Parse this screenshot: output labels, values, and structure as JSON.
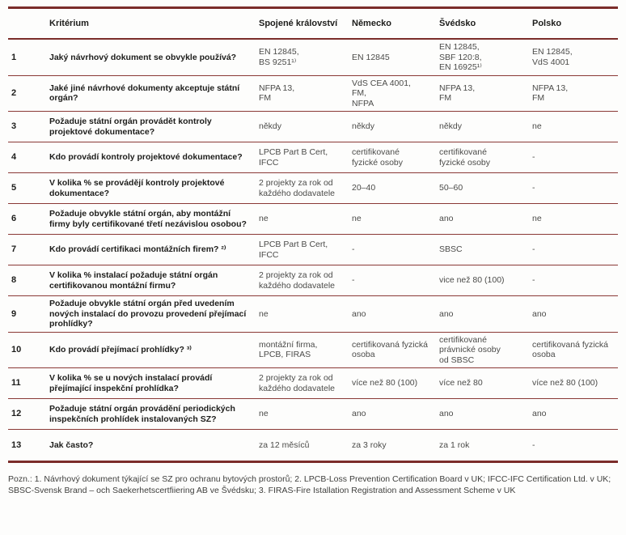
{
  "table": {
    "columns": {
      "criterium": "Kritérium",
      "uk": "Spojené království",
      "germany": "Německo",
      "sweden": "Švédsko",
      "poland": "Polsko"
    },
    "rows": [
      {
        "num": "1",
        "question": "Jaký návrhový dokument se obvykle používá?",
        "uk": "EN 12845,\nBS 9251¹⁾",
        "germany": "EN 12845",
        "sweden": "EN 12845,\nSBF 120:8,\nEN 16925¹⁾",
        "poland": "EN 12845,\nVdS 4001"
      },
      {
        "num": "2",
        "question": "Jaké jiné návrhové dokumenty akceptuje státní orgán?",
        "uk": "NFPA 13,\nFM",
        "germany": "VdS CEA 4001,\nFM,\nNFPA",
        "sweden": "NFPA 13,\nFM",
        "poland": "NFPA 13,\nFM"
      },
      {
        "num": "3",
        "question": "Požaduje státní orgán provádět kontroly projektové dokumentace?",
        "uk": "někdy",
        "germany": "někdy",
        "sweden": "někdy",
        "poland": "ne"
      },
      {
        "num": "4",
        "question": "Kdo provádí kontroly projektové dokumentace?",
        "uk": "LPCB Part B Cert,\nIFCC",
        "germany": "certifikované\nfyzické osoby",
        "sweden": "certifikované\nfyzické osoby",
        "poland": "-"
      },
      {
        "num": "5",
        "question": "V kolika % se provádějí kontroly projektové dokumentace?",
        "uk": "2 projekty za rok od\nkaždého dodavatele",
        "germany": "20–40",
        "sweden": "50–60",
        "poland": "-"
      },
      {
        "num": "6",
        "question": "Požaduje obvykle státní orgán, aby montážní firmy byly  certifikované třetí nezávislou osobou?",
        "uk": "ne",
        "germany": "ne",
        "sweden": "ano",
        "poland": "ne"
      },
      {
        "num": "7",
        "question": "Kdo provádí certifikaci montážních firem? ²⁾",
        "uk": "LPCB Part B Cert,\nIFCC",
        "germany": "-",
        "sweden": "SBSC",
        "poland": "-"
      },
      {
        "num": "8",
        "question": "V kolika % instalací požaduje státní orgán certifikovanou montážní firmu?",
        "uk": "2 projekty za rok od\nkaždého dodavatele",
        "germany": "-",
        "sweden": "vice než 80 (100)",
        "poland": "-"
      },
      {
        "num": "9",
        "question": "Požaduje obvykle státní orgán před uvedením nových instalací do provozu provedení přejímací  prohlídky?",
        "uk": "ne",
        "germany": "ano",
        "sweden": "ano",
        "poland": "ano"
      },
      {
        "num": "10",
        "question": "Kdo provádí přejímací prohlídky? ³⁾",
        "uk": "montážní firma,\nLPCB, FIRAS",
        "germany": "certifikovaná fyzická\nosoba",
        "sweden": "certifikované\nprávnické osoby\nod SBSC",
        "poland": "certifikovaná fyzická\nosoba"
      },
      {
        "num": "11",
        "question": "V kolika % se u nových instalací provádí přejímající inspekční prohlídka?",
        "uk": "2 projekty za rok od\nkaždého dodavatele",
        "germany": "více než 80 (100)",
        "sweden": "více než 80",
        "poland": "více než 80 (100)"
      },
      {
        "num": "12",
        "question": "Požaduje státní orgán provádění periodických inspekčních prohlídek instalovaných SZ?",
        "uk": "ne",
        "germany": "ano",
        "sweden": "ano",
        "poland": "ano"
      },
      {
        "num": "13",
        "question": "Jak často?",
        "uk": "za 12 měsíců",
        "germany": "za 3 roky",
        "sweden": "za 1 rok",
        "poland": "-"
      }
    ]
  },
  "footnote": "Pozn.: 1. Návrhový dokument týkající se SZ pro ochranu bytových prostorů; 2. LPCB-Loss Prevention Certification Board v UK; IFCC-IFC Certification Ltd. v UK; SBSC-Svensk Brand – och Saekerhetscertfiiering AB ve Švédsku; 3. FIRAS-Fire Istallation Registration and Assessment Scheme v UK",
  "colors": {
    "rule": "#7b2d2a",
    "heading_text": "#1d1d1b",
    "body_text": "#4b4b49"
  }
}
